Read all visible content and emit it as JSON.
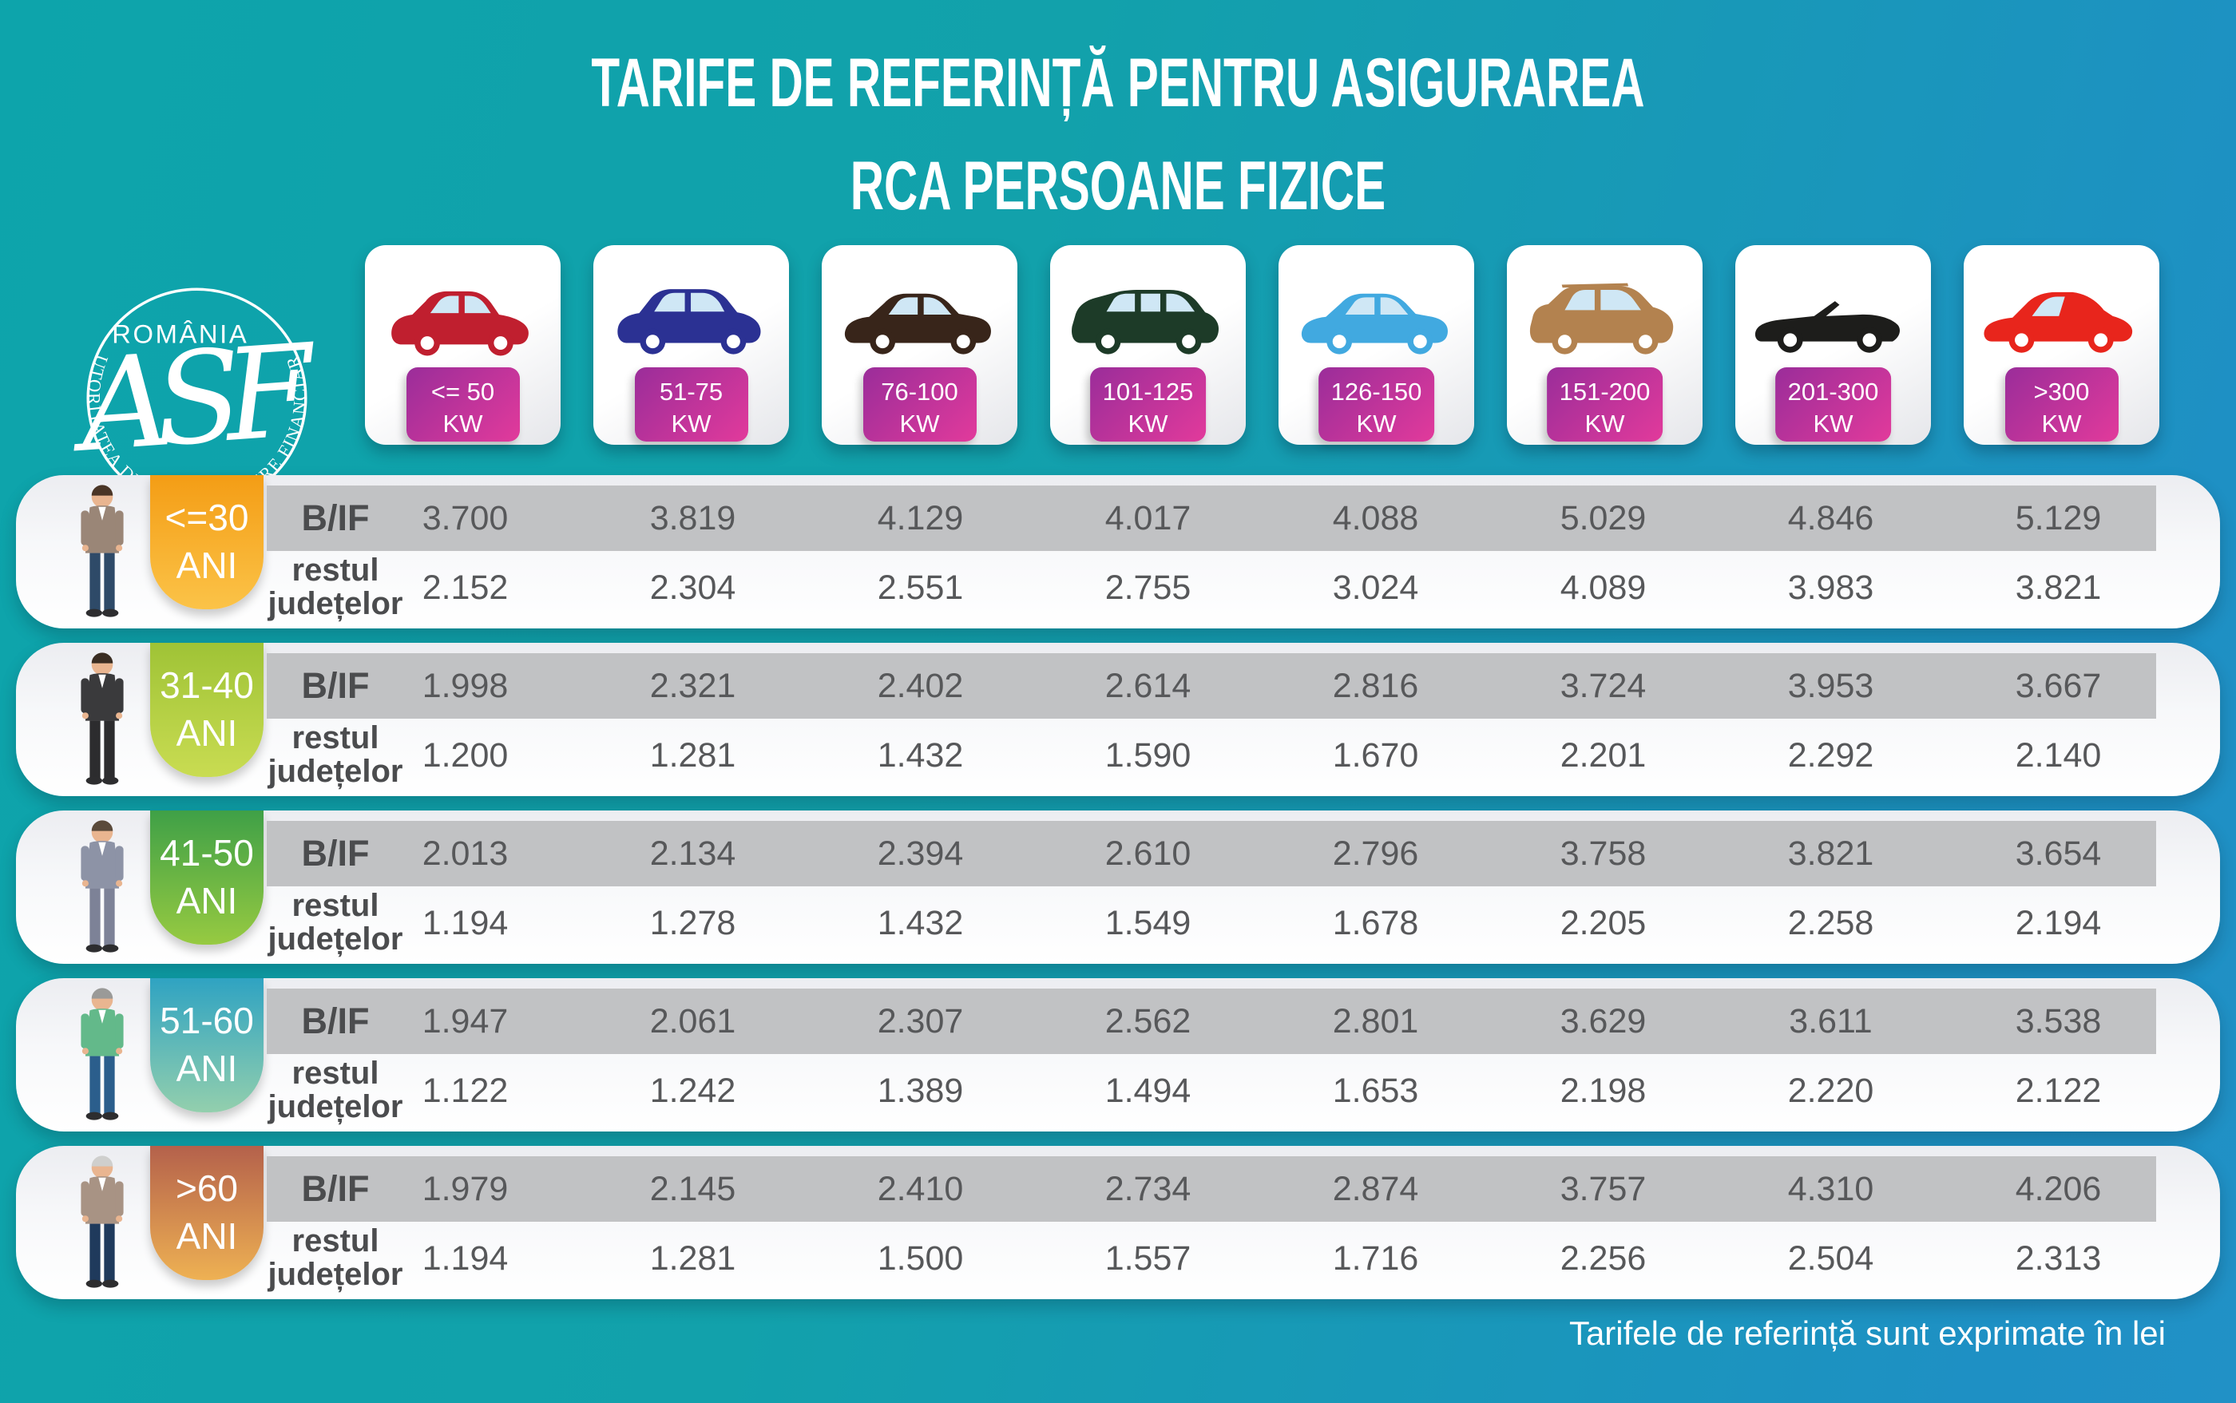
{
  "page": {
    "title_line1": "TARIFE DE REFERINȚĂ PENTRU ASIGURAREA",
    "title_line2": "RCA PERSOANE FIZICE",
    "footer_note": "Tarifele de referință sunt exprimate în lei"
  },
  "logo": {
    "country": "ROMÂNIA",
    "monogram": "ASF",
    "ring_text": "AUTORITATEA DE SUPRAVEGHERE FINANCIARĂ"
  },
  "row_labels": {
    "bucharest_ilfov": "B/IF",
    "rest_line1": "restul",
    "rest_line2": "județelor"
  },
  "colors": {
    "background_teal": "#12a1ab",
    "background_blue": "#1e90c4",
    "kw_badge_gradient": [
      "#9a2d9a",
      "#e23a9b"
    ],
    "band_gray": "#c1c2c4",
    "value_text": "#57585a",
    "glass": "#cfe7f5"
  },
  "power_columns": [
    {
      "range": "<= 50",
      "unit": "KW",
      "icon": "city-car-icon",
      "car_color": "#c01f2f"
    },
    {
      "range": "51-75",
      "unit": "KW",
      "icon": "crossover-car-icon",
      "car_color": "#2b3193"
    },
    {
      "range": "76-100",
      "unit": "KW",
      "icon": "sedan-car-icon",
      "car_color": "#38251a"
    },
    {
      "range": "101-125",
      "unit": "KW",
      "icon": "minivan-car-icon",
      "car_color": "#1d3b28"
    },
    {
      "range": "126-150",
      "unit": "KW",
      "icon": "sedan-car-icon",
      "car_color": "#41a9e0"
    },
    {
      "range": "151-200",
      "unit": "KW",
      "icon": "suv-car-icon",
      "car_color": "#b3824f"
    },
    {
      "range": "201-300",
      "unit": "KW",
      "icon": "convertible-car-icon",
      "car_color": "#1d1d1b"
    },
    {
      "range": ">300",
      "unit": "KW",
      "icon": "sports-car-icon",
      "car_color": "#e8251c"
    }
  ],
  "age_groups": [
    {
      "age": "<=30",
      "age_unit": "ANI",
      "badge_gradient": [
        "#f49d15",
        "#fbc348"
      ],
      "person": {
        "icon": "young-man-figure",
        "top": "#9a8677",
        "pants": "#2e4a68",
        "hair": "#4a3526",
        "skin": "#e9b590"
      },
      "bif_values": [
        "3.700",
        "3.819",
        "4.129",
        "4.017",
        "4.088",
        "5.029",
        "4.846",
        "5.129"
      ],
      "rest_values": [
        "2.152",
        "2.304",
        "2.551",
        "2.755",
        "3.024",
        "4.089",
        "3.983",
        "3.821"
      ]
    },
    {
      "age": "31-40",
      "age_unit": "ANI",
      "badge_gradient": [
        "#9fc336",
        "#c9dc52"
      ],
      "person": {
        "icon": "suit-man-figure",
        "top": "#3a3a3c",
        "pants": "#2c2c2e",
        "hair": "#3a2d22",
        "skin": "#e9b590"
      },
      "bif_values": [
        "1.998",
        "2.321",
        "2.402",
        "2.614",
        "2.816",
        "3.724",
        "3.953",
        "3.667"
      ],
      "rest_values": [
        "1.200",
        "1.281",
        "1.432",
        "1.590",
        "1.670",
        "2.201",
        "2.292",
        "2.140"
      ]
    },
    {
      "age": "41-50",
      "age_unit": "ANI",
      "badge_gradient": [
        "#3fa047",
        "#97ca41"
      ],
      "person": {
        "icon": "gray-suit-man-figure",
        "top": "#8d93a6",
        "pants": "#7d8297",
        "hair": "#5a4a3a",
        "skin": "#e9b590"
      },
      "bif_values": [
        "2.013",
        "2.134",
        "2.394",
        "2.610",
        "2.796",
        "3.758",
        "3.821",
        "3.654"
      ],
      "rest_values": [
        "1.194",
        "1.278",
        "1.432",
        "1.549",
        "1.678",
        "2.205",
        "2.258",
        "2.194"
      ]
    },
    {
      "age": "51-60",
      "age_unit": "ANI",
      "badge_gradient": [
        "#2fa3c2",
        "#93cfad"
      ],
      "person": {
        "icon": "vest-man-figure",
        "top": "#63b98a",
        "pants": "#2b5e8c",
        "hair": "#9a9a98",
        "skin": "#e9b590"
      },
      "bif_values": [
        "1.947",
        "2.061",
        "2.307",
        "2.562",
        "2.801",
        "3.629",
        "3.611",
        "3.538"
      ],
      "rest_values": [
        "1.122",
        "1.242",
        "1.389",
        "1.494",
        "1.653",
        "2.198",
        "2.220",
        "2.122"
      ]
    },
    {
      "age": ">60",
      "age_unit": "ANI",
      "badge_gradient": [
        "#b4614b",
        "#eeb153"
      ],
      "person": {
        "icon": "elderly-man-figure",
        "top": "#a89384",
        "pants": "#1f3a5c",
        "hair": "#cfcfcd",
        "skin": "#e9b590"
      },
      "bif_values": [
        "1.979",
        "2.145",
        "2.410",
        "2.734",
        "2.874",
        "3.757",
        "4.310",
        "4.206"
      ],
      "rest_values": [
        "1.194",
        "1.281",
        "1.500",
        "1.557",
        "1.716",
        "2.256",
        "2.504",
        "2.313"
      ]
    }
  ],
  "chart_data": {
    "type": "table",
    "title": "TARIFE DE REFERINȚĂ PENTRU ASIGURAREA RCA PERSOANE FIZICE",
    "unit_note": "Tarifele de referință sunt exprimate în lei",
    "currency": "lei",
    "columns": [
      "<= 50 KW",
      "51-75 KW",
      "76-100 KW",
      "101-125 KW",
      "126-150 KW",
      "151-200 KW",
      "201-300 KW",
      ">300 KW"
    ],
    "rows": [
      {
        "age_group": "<=30 ANI",
        "region": "B/IF",
        "tariffs_lei": [
          3700,
          3819,
          4129,
          4017,
          4088,
          5029,
          4846,
          5129
        ]
      },
      {
        "age_group": "<=30 ANI",
        "region": "restul județelor",
        "tariffs_lei": [
          2152,
          2304,
          2551,
          2755,
          3024,
          4089,
          3983,
          3821
        ]
      },
      {
        "age_group": "31-40 ANI",
        "region": "B/IF",
        "tariffs_lei": [
          1998,
          2321,
          2402,
          2614,
          2816,
          3724,
          3953,
          3667
        ]
      },
      {
        "age_group": "31-40 ANI",
        "region": "restul județelor",
        "tariffs_lei": [
          1200,
          1281,
          1432,
          1590,
          1670,
          2201,
          2292,
          2140
        ]
      },
      {
        "age_group": "41-50 ANI",
        "region": "B/IF",
        "tariffs_lei": [
          2013,
          2134,
          2394,
          2610,
          2796,
          3758,
          3821,
          3654
        ]
      },
      {
        "age_group": "41-50 ANI",
        "region": "restul județelor",
        "tariffs_lei": [
          1194,
          1278,
          1432,
          1549,
          1678,
          2205,
          2258,
          2194
        ]
      },
      {
        "age_group": "51-60 ANI",
        "region": "B/IF",
        "tariffs_lei": [
          1947,
          2061,
          2307,
          2562,
          2801,
          3629,
          3611,
          3538
        ]
      },
      {
        "age_group": "51-60 ANI",
        "region": "restul județelor",
        "tariffs_lei": [
          1122,
          1242,
          1389,
          1494,
          1653,
          2198,
          2220,
          2122
        ]
      },
      {
        "age_group": ">60 ANI",
        "region": "B/IF",
        "tariffs_lei": [
          1979,
          2145,
          2410,
          2734,
          2874,
          3757,
          4310,
          4206
        ]
      },
      {
        "age_group": ">60 ANI",
        "region": "restul județelor",
        "tariffs_lei": [
          1194,
          1281,
          1500,
          1557,
          1716,
          2256,
          2504,
          2313
        ]
      }
    ]
  }
}
